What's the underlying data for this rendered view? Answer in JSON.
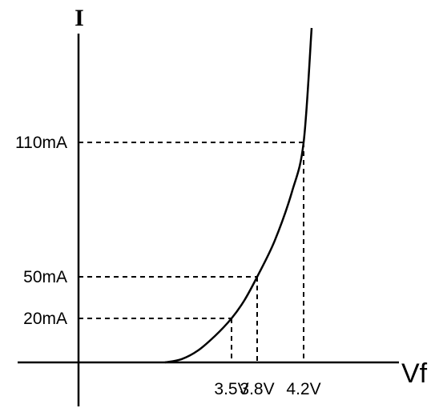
{
  "chart_data": {
    "type": "line",
    "title": "",
    "xlabel": "Vf",
    "ylabel": "I",
    "grid": false,
    "legend": "none",
    "x_tick_labels": [
      "3.5V",
      "3.8V",
      "4.2V"
    ],
    "y_tick_labels": [
      "20mA",
      "50mA",
      "110mA"
    ],
    "marked_points": [
      {
        "x": 3.5,
        "y": 20,
        "x_label": "3.5V",
        "y_label": "20mA"
      },
      {
        "x": 3.8,
        "y": 50,
        "x_label": "3.8V",
        "y_label": "50mA"
      },
      {
        "x": 4.2,
        "y": 110,
        "x_label": "4.2V",
        "y_label": "110mA"
      }
    ],
    "series": [
      {
        "x": [
          2.7,
          2.9,
          3.1,
          3.3,
          3.5,
          3.65,
          3.8,
          3.95,
          4.1,
          4.2,
          4.28
        ],
        "y": [
          0,
          1.5,
          5.5,
          12,
          20,
          33,
          50,
          66,
          88,
          110,
          160
        ]
      }
    ],
    "colors": {
      "line": "#000000",
      "background": "#ffffff"
    }
  }
}
